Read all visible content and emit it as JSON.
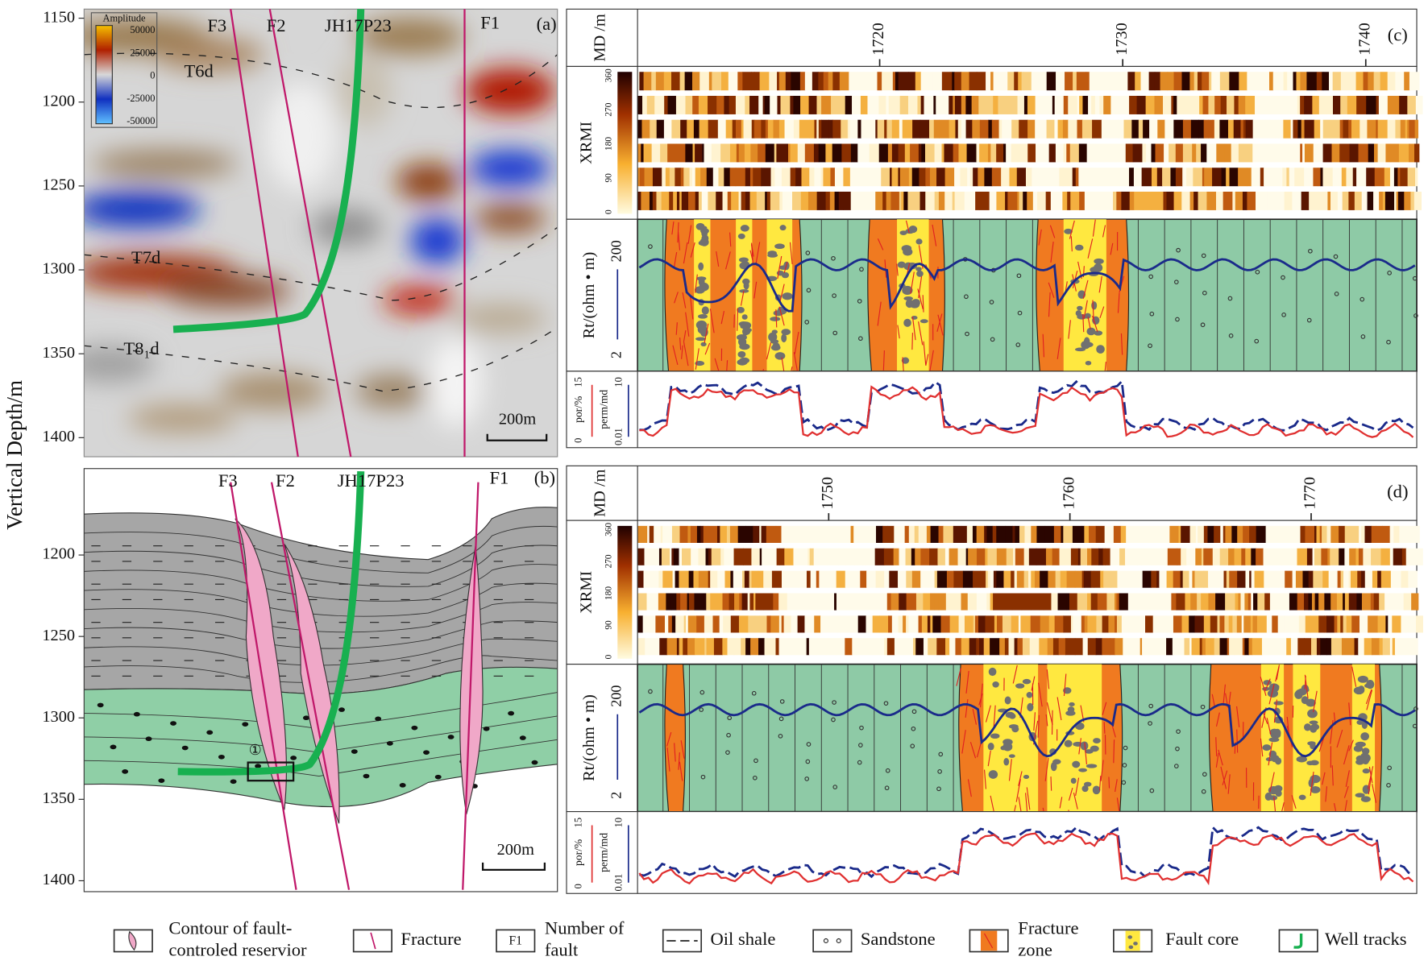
{
  "y_axis_label": "Vertical Depth/m",
  "panel_a": {
    "label": "(a)",
    "depth_ticks": [
      1150,
      1200,
      1250,
      1300,
      1350,
      1400
    ],
    "faults": [
      "F3",
      "F2",
      "F1"
    ],
    "well": "JH17P23",
    "horizons": [
      "T6d",
      "T7d",
      "T8₁d"
    ],
    "scale": "200m",
    "colorbar_title": "Amplitude",
    "colorbar_ticks": [
      50000,
      25000,
      0,
      -25000,
      -50000
    ]
  },
  "panel_b": {
    "label": "(b)",
    "depth_ticks": [
      1200,
      1250,
      1300,
      1350,
      1400
    ],
    "faults": [
      "F3",
      "F2",
      "F1"
    ],
    "well": "JH17P23",
    "marker": "①",
    "scale": "200m"
  },
  "panel_c": {
    "label": "(c)",
    "md_ticks": [
      1720,
      1730,
      1740
    ]
  },
  "panel_d": {
    "label": "(d)",
    "md_ticks": [
      1750,
      1760,
      1770
    ]
  },
  "tracks": {
    "md_label": "MD /m",
    "xrmi_label": "XRMI",
    "xrmi_ticks": [
      0,
      90,
      180,
      270,
      360
    ],
    "rt_label": "Rt/(ohm • m)",
    "rt_ticks": [
      2,
      200
    ],
    "por_label": "por/%",
    "por_ticks": [
      0,
      15
    ],
    "perm_label": "perm/md",
    "perm_ticks": [
      0.01,
      10
    ]
  },
  "legend": [
    {
      "lines": [
        "Contour of fault-",
        "controled reservior"
      ]
    },
    {
      "lines": [
        "Fracture"
      ]
    },
    {
      "icon": "F1",
      "lines": [
        "Number  of",
        "fault"
      ]
    },
    {
      "lines": [
        "Oil shale"
      ]
    },
    {
      "lines": [
        "Sandstone"
      ]
    },
    {
      "lines": [
        "Fracture",
        "zone"
      ]
    },
    {
      "lines": [
        "Fault core"
      ]
    },
    {
      "lines": [
        "Well tracks"
      ]
    }
  ]
}
